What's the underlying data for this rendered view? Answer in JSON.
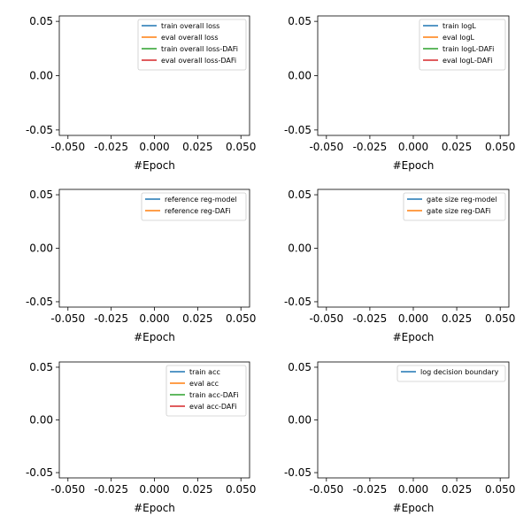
{
  "chart_data": [
    {
      "type": "line",
      "xlabel": "#Epoch",
      "xlim": [
        -0.055,
        0.055
      ],
      "ylim": [
        -0.055,
        0.055
      ],
      "xticks": [
        "-0.050",
        "-0.025",
        "0.000",
        "0.025",
        "0.050"
      ],
      "yticks": [
        "-0.05",
        "0.00",
        "0.05"
      ],
      "legend_position": "top-right",
      "series": [
        {
          "name": "train overall loss",
          "color": "#1f77b4",
          "values": []
        },
        {
          "name": "eval overall loss",
          "color": "#ff7f0e",
          "values": []
        },
        {
          "name": "train overall loss-DAFi",
          "color": "#2ca02c",
          "values": []
        },
        {
          "name": "eval overall loss-DAFi",
          "color": "#d62728",
          "values": []
        }
      ]
    },
    {
      "type": "line",
      "xlabel": "#Epoch",
      "xlim": [
        -0.055,
        0.055
      ],
      "ylim": [
        -0.055,
        0.055
      ],
      "xticks": [
        "-0.050",
        "-0.025",
        "0.000",
        "0.025",
        "0.050"
      ],
      "yticks": [
        "-0.05",
        "0.00",
        "0.05"
      ],
      "legend_position": "top-right",
      "series": [
        {
          "name": "train logL",
          "color": "#1f77b4",
          "values": []
        },
        {
          "name": "eval logL",
          "color": "#ff7f0e",
          "values": []
        },
        {
          "name": "train logL-DAFi",
          "color": "#2ca02c",
          "values": []
        },
        {
          "name": "eval logL-DAFi",
          "color": "#d62728",
          "values": []
        }
      ]
    },
    {
      "type": "line",
      "xlabel": "#Epoch",
      "xlim": [
        -0.055,
        0.055
      ],
      "ylim": [
        -0.055,
        0.055
      ],
      "xticks": [
        "-0.050",
        "-0.025",
        "0.000",
        "0.025",
        "0.050"
      ],
      "yticks": [
        "-0.05",
        "0.00",
        "0.05"
      ],
      "legend_position": "top-right",
      "series": [
        {
          "name": "reference reg-model",
          "color": "#1f77b4",
          "values": []
        },
        {
          "name": "reference reg-DAFi",
          "color": "#ff7f0e",
          "values": []
        }
      ]
    },
    {
      "type": "line",
      "xlabel": "#Epoch",
      "xlim": [
        -0.055,
        0.055
      ],
      "ylim": [
        -0.055,
        0.055
      ],
      "xticks": [
        "-0.050",
        "-0.025",
        "0.000",
        "0.025",
        "0.050"
      ],
      "yticks": [
        "-0.05",
        "0.00",
        "0.05"
      ],
      "legend_position": "top-right",
      "series": [
        {
          "name": "gate size reg-model",
          "color": "#1f77b4",
          "values": []
        },
        {
          "name": "gate size reg-DAFi",
          "color": "#ff7f0e",
          "values": []
        }
      ]
    },
    {
      "type": "line",
      "xlabel": "#Epoch",
      "xlim": [
        -0.055,
        0.055
      ],
      "ylim": [
        -0.055,
        0.055
      ],
      "xticks": [
        "-0.050",
        "-0.025",
        "0.000",
        "0.025",
        "0.050"
      ],
      "yticks": [
        "-0.05",
        "0.00",
        "0.05"
      ],
      "legend_position": "top-right",
      "series": [
        {
          "name": "train acc",
          "color": "#1f77b4",
          "values": []
        },
        {
          "name": "eval acc",
          "color": "#ff7f0e",
          "values": []
        },
        {
          "name": "train acc-DAFi",
          "color": "#2ca02c",
          "values": []
        },
        {
          "name": "eval acc-DAFi",
          "color": "#d62728",
          "values": []
        }
      ]
    },
    {
      "type": "line",
      "xlabel": "#Epoch",
      "xlim": [
        -0.055,
        0.055
      ],
      "ylim": [
        -0.055,
        0.055
      ],
      "xticks": [
        "-0.050",
        "-0.025",
        "0.000",
        "0.025",
        "0.050"
      ],
      "yticks": [
        "-0.05",
        "0.00",
        "0.05"
      ],
      "legend_position": "top-right",
      "series": [
        {
          "name": "log decision boundary",
          "color": "#1f77b4",
          "values": []
        }
      ]
    }
  ]
}
